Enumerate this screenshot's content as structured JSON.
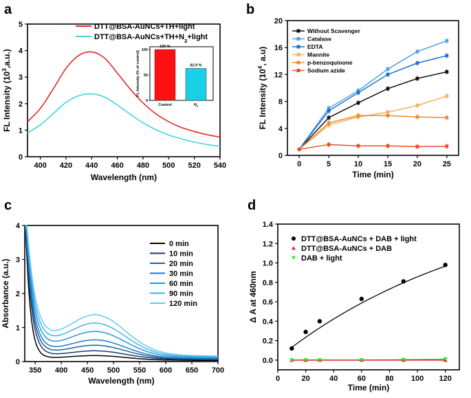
{
  "chart_data": [
    {
      "panel": "a",
      "type": "line",
      "xlabel": "Wavelength (nm)",
      "ylabel_main": "FL Intensity (10",
      "ylabel_sup": "3",
      "ylabel_tail": ",a.u.)",
      "xlim": [
        390,
        540
      ],
      "ylim": [
        0,
        5
      ],
      "xticks": [
        400,
        420,
        440,
        460,
        480,
        500,
        520,
        540
      ],
      "yticks": [
        0,
        1,
        2,
        3,
        4,
        5
      ],
      "legend_position": "top-right",
      "series": [
        {
          "name": "DTT@BSA-AuNCs+TH+light",
          "color": "#e8262a",
          "x": [
            390,
            400,
            410,
            420,
            430,
            440,
            450,
            460,
            470,
            480,
            490,
            500,
            510,
            520,
            530,
            540
          ],
          "y": [
            1.32,
            1.82,
            2.55,
            3.33,
            3.82,
            3.95,
            3.72,
            3.15,
            2.55,
            2.03,
            1.62,
            1.32,
            1.1,
            0.95,
            0.83,
            0.74
          ]
        },
        {
          "name_main": "DTT@BSA-AuNCs+TH+N",
          "name_sub": "2",
          "name_tail": "+light",
          "color": "#3ed6e0",
          "x": [
            390,
            400,
            410,
            420,
            430,
            440,
            450,
            460,
            470,
            480,
            490,
            500,
            510,
            520,
            530,
            540
          ],
          "y": [
            0.9,
            1.2,
            1.62,
            2.05,
            2.3,
            2.37,
            2.25,
            1.95,
            1.6,
            1.28,
            1.02,
            0.82,
            0.67,
            0.55,
            0.46,
            0.39
          ]
        }
      ],
      "inset": {
        "type": "bar",
        "ylabel": "FL Intensity (% of control)",
        "ylim": [
          0,
          100
        ],
        "yticks": [
          0,
          50,
          100
        ],
        "categories": [
          "Control",
          "N"
        ],
        "category_sub": "2",
        "values": [
          100,
          62.9
        ],
        "value_labels": [
          "100 %",
          "62.9 %"
        ],
        "colors": [
          "#ff1010",
          "#1ad0e6"
        ]
      }
    },
    {
      "panel": "b",
      "type": "line",
      "xlabel": "Time (min)",
      "ylabel_main": "FL Intensity (10",
      "ylabel_sup": "4",
      "ylabel_tail": ", a.u)",
      "xlim": [
        -2,
        27
      ],
      "ylim": [
        0,
        20
      ],
      "xticks": [
        0,
        5,
        10,
        15,
        20,
        25
      ],
      "yticks": [
        0,
        4,
        8,
        12,
        16,
        20
      ],
      "legend_position": "top-left",
      "x": [
        0,
        5,
        10,
        15,
        20,
        25
      ],
      "series": [
        {
          "name": "Without Scavenger",
          "color": "#111111",
          "values": [
            0.9,
            5.6,
            7.8,
            9.9,
            11.4,
            12.4
          ]
        },
        {
          "name": "Catalase",
          "color": "#4ba3e8",
          "values": [
            0.9,
            7.0,
            9.6,
            12.8,
            15.4,
            17.0
          ]
        },
        {
          "name": "EDTA",
          "color": "#1f6fd1",
          "values": [
            0.9,
            6.6,
            9.3,
            12.0,
            13.7,
            14.8
          ]
        },
        {
          "name": "Mannite",
          "color": "#f7b063",
          "values": [
            0.9,
            4.5,
            5.7,
            6.4,
            7.4,
            8.8
          ]
        },
        {
          "name": "p-benzoquinone",
          "color": "#f08a2c",
          "values": [
            0.9,
            4.8,
            5.9,
            5.9,
            5.7,
            5.6
          ]
        },
        {
          "name": "Sodium azide",
          "color": "#e5502a",
          "values": [
            0.9,
            1.6,
            1.4,
            1.4,
            1.3,
            1.35
          ]
        }
      ]
    },
    {
      "panel": "c",
      "type": "line",
      "xlabel": "Wavelength (nm)",
      "ylabel": "Absorbance (a.u.)",
      "xlim": [
        330,
        700
      ],
      "ylim": [
        0,
        4
      ],
      "xticks": [
        350,
        400,
        450,
        500,
        550,
        600,
        650,
        700
      ],
      "yticks": [
        0,
        1,
        2,
        3,
        4
      ],
      "legend_position": "right",
      "series": [
        {
          "name": "0 min",
          "color": "#000000",
          "peak": 0.12,
          "base": 0.1,
          "floor": 0.03,
          "decay": 9
        },
        {
          "name": "10 min",
          "color": "#1d3b63",
          "peak": 0.22,
          "base": 0.18,
          "floor": 0.05,
          "decay": 11
        },
        {
          "name": "20 min",
          "color": "#1d5fa6",
          "peak": 0.35,
          "base": 0.27,
          "floor": 0.06,
          "decay": 12
        },
        {
          "name": "30 min",
          "color": "#1f78c8",
          "peak": 0.48,
          "base": 0.34,
          "floor": 0.07,
          "decay": 13
        },
        {
          "name": "60 min",
          "color": "#2794dc",
          "peak": 0.68,
          "base": 0.45,
          "floor": 0.09,
          "decay": 14
        },
        {
          "name": "90 min",
          "color": "#42b2e8",
          "peak": 0.88,
          "base": 0.55,
          "floor": 0.11,
          "decay": 15
        },
        {
          "name": "120 min",
          "color": "#5fcaf2",
          "peak": 1.08,
          "base": 0.64,
          "floor": 0.13,
          "decay": 16
        }
      ]
    },
    {
      "panel": "d",
      "type": "scatter",
      "xlabel": "Time (min)",
      "ylabel": "Δ A at 460nm",
      "xlim": [
        0,
        130
      ],
      "ylim": [
        -0.1,
        1.4
      ],
      "xticks": [
        0,
        20,
        40,
        60,
        80,
        100,
        120
      ],
      "yticks": [
        0.0,
        0.2,
        0.4,
        0.6,
        0.8,
        1.0,
        1.2,
        1.4
      ],
      "legend_position": "top-left",
      "series": [
        {
          "name": "DTT@BSA-AuNCs + DAB + light",
          "marker": "circle",
          "color": "#000000",
          "x": [
            10,
            20,
            30,
            60,
            90,
            120
          ],
          "y": [
            0.12,
            0.29,
            0.4,
            0.63,
            0.81,
            0.98
          ]
        },
        {
          "name": "DTT@BSA-AuNCs + DAB",
          "marker": "triangle-up",
          "color": "#e8262a",
          "x": [
            10,
            20,
            30,
            60,
            90,
            120
          ],
          "y": [
            0.0,
            0.0,
            0.0,
            0.0,
            0.0,
            0.0
          ]
        },
        {
          "name": "DAB + light",
          "marker": "triangle-down",
          "color": "#2ee62e",
          "x": [
            10,
            20,
            30,
            60,
            90,
            120
          ],
          "y": [
            0.0,
            0.0,
            0.0,
            0.0,
            0.005,
            0.01
          ]
        }
      ]
    }
  ]
}
